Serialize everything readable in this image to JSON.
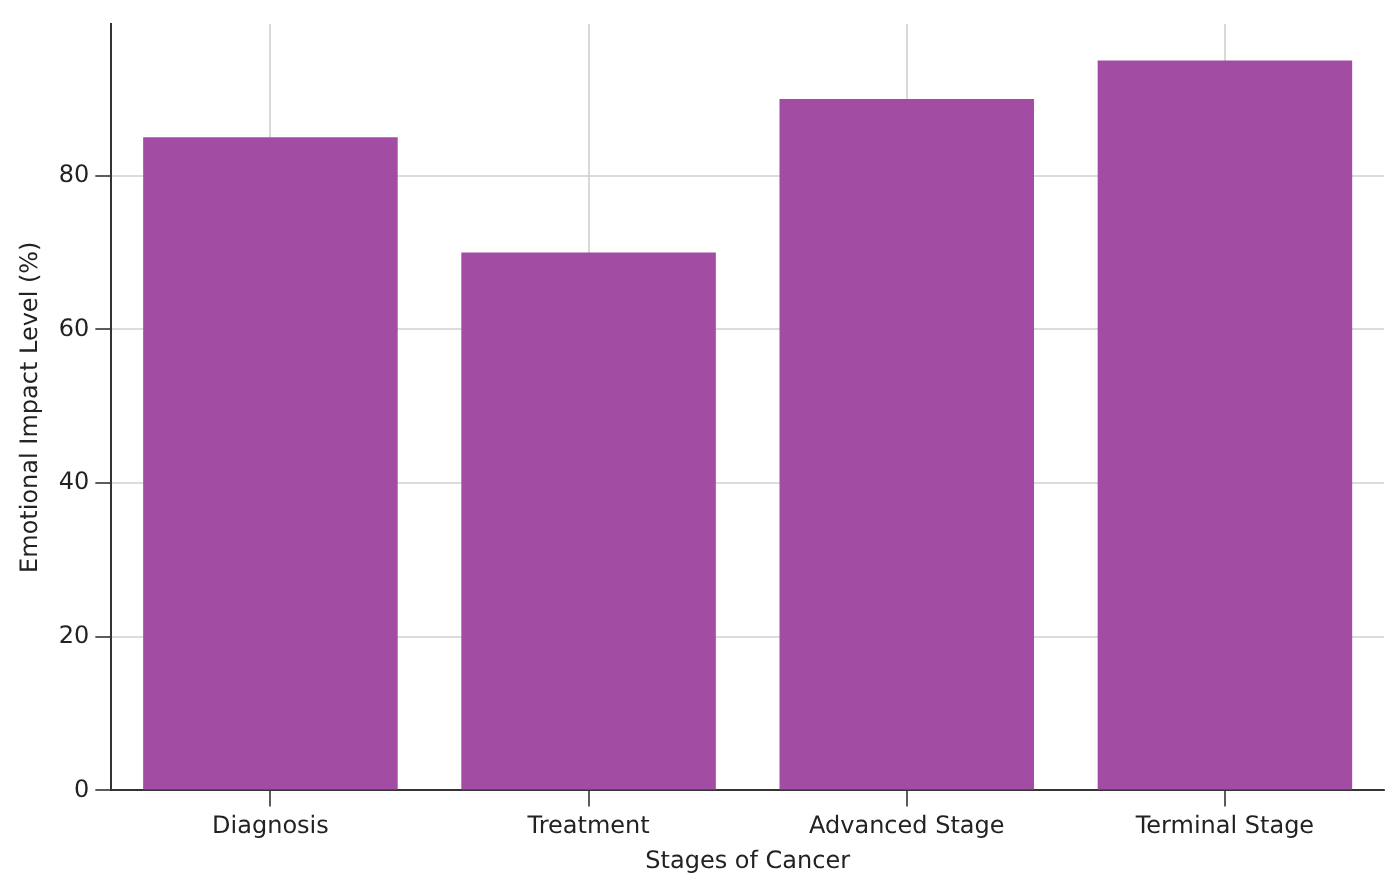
{
  "chart_data": {
    "type": "bar",
    "xlabel": "Stages of Cancer",
    "ylabel": "Emotional Impact Level (%)",
    "categories": [
      "Diagnosis",
      "Treatment",
      "Advanced Stage",
      "Terminal Stage"
    ],
    "values": [
      85,
      70,
      90,
      95
    ],
    "color": "#a24ca4",
    "ylim": [
      0,
      99.75
    ],
    "yticks": [
      0,
      20,
      40,
      60,
      80
    ],
    "grid": true
  }
}
